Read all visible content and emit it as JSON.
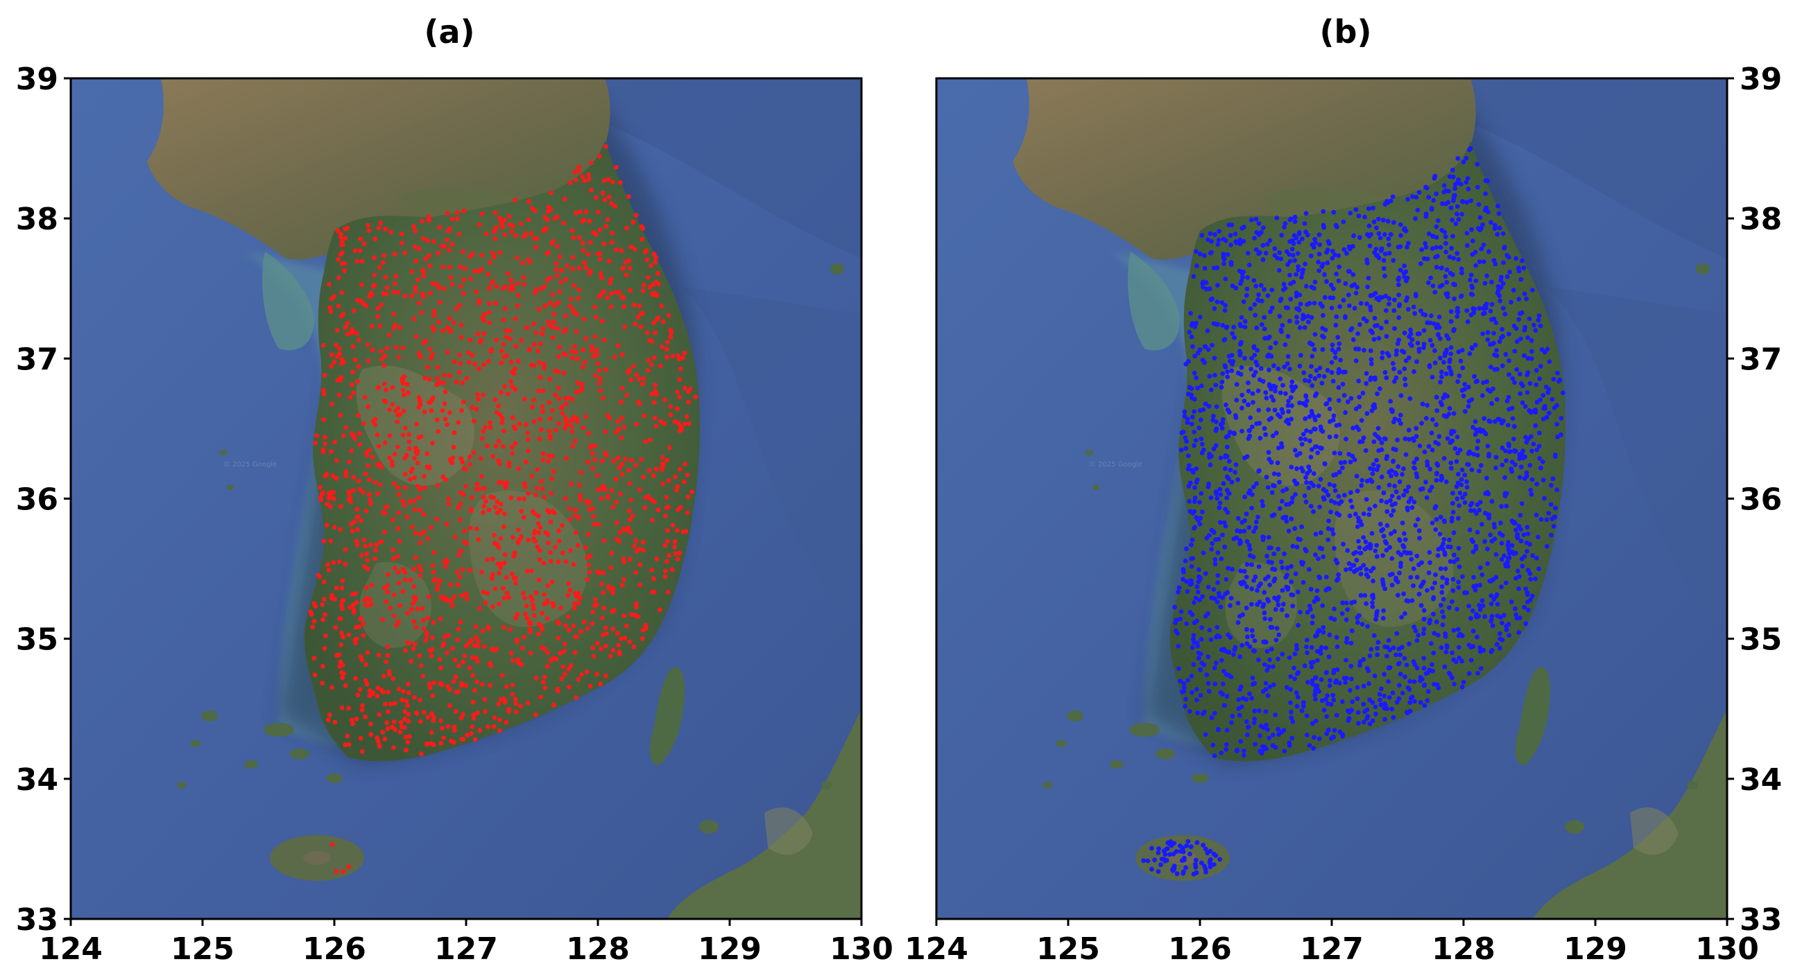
{
  "figure": {
    "panels": [
      {
        "id": "a",
        "title": "(a)",
        "marker_color": "#ff1a1a",
        "y_axis_side": "left",
        "lon_range": [
          124,
          130
        ],
        "lat_range": [
          33,
          39
        ],
        "x_ticks": [
          "124",
          "125",
          "126",
          "127",
          "128",
          "129",
          "130"
        ],
        "y_ticks": [
          "33",
          "34",
          "35",
          "36",
          "37",
          "38",
          "39"
        ],
        "watermark": "© 2025 Google"
      },
      {
        "id": "b",
        "title": "(b)",
        "marker_color": "#1a1aff",
        "y_axis_side": "right",
        "lon_range": [
          124,
          130
        ],
        "lat_range": [
          33,
          39
        ],
        "x_ticks": [
          "124",
          "125",
          "126",
          "127",
          "128",
          "129",
          "130"
        ],
        "y_ticks": [
          "33",
          "34",
          "35",
          "36",
          "37",
          "38",
          "39"
        ],
        "watermark": "© 2025 Google"
      }
    ],
    "colors": {
      "sea": "#4a6aa8",
      "deep_sea": "#3d5c9a",
      "land": "#4e6a3e",
      "land_light": "#8a8466",
      "shallow": "#5e9a9a"
    }
  }
}
